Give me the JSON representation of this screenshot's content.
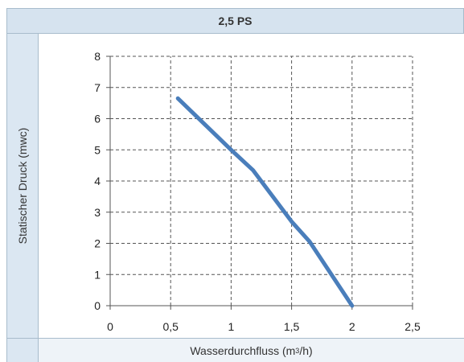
{
  "chart_data": {
    "type": "line",
    "title": "2,5 PS",
    "xlabel_prefix": "Wasserdurchfluss (m",
    "xlabel_sup": "3",
    "xlabel_suffix": "/h)",
    "ylabel": "Statischer Druck (mwc)",
    "xlim": [
      0,
      2.5
    ],
    "ylim": [
      0,
      8
    ],
    "x_ticks": [
      0,
      0.5,
      1,
      1.5,
      2,
      2.5
    ],
    "x_tick_labels": [
      "0",
      "0,5",
      "1",
      "1,5",
      "2",
      "2,5"
    ],
    "y_ticks": [
      0,
      1,
      2,
      3,
      4,
      5,
      6,
      7,
      8
    ],
    "y_tick_labels": [
      "0",
      "1",
      "2",
      "3",
      "4",
      "5",
      "6",
      "7",
      "8"
    ],
    "grid": true,
    "series": [
      {
        "color": "#4a7ebb",
        "x": [
          0.56,
          1.0,
          1.18,
          1.5,
          1.65,
          2.0
        ],
        "y": [
          6.65,
          5.0,
          4.35,
          2.7,
          2.05,
          0.0
        ]
      }
    ]
  }
}
